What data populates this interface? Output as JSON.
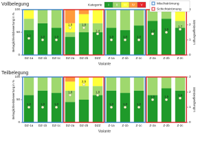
{
  "chart_data": [
    {
      "type": "bar",
      "stacked": true,
      "title": "Vollbelegung",
      "categories": [
        "DZ-1a",
        "DZ-1b",
        "DZ-1c",
        "DZ-2a",
        "DZ-2b",
        "DZZ",
        "Z-1a",
        "Z-1b",
        "Z-1c",
        "Z-2a",
        "Z-2b",
        "Z-2c"
      ],
      "legend_title": "Kategorie",
      "series": [
        {
          "name": "I",
          "color": "#1f9a2a",
          "values": [
            55,
            70,
            60,
            40,
            50,
            50,
            60,
            55,
            65,
            75,
            80,
            60
          ]
        },
        {
          "name": "II",
          "color": "#9fd86e",
          "values": [
            25,
            30,
            40,
            10,
            20,
            20,
            40,
            45,
            35,
            25,
            20,
            15
          ]
        },
        {
          "name": "III",
          "color": "#ffff3c",
          "values": [
            20,
            0,
            0,
            20,
            20,
            30,
            0,
            0,
            0,
            0,
            0,
            25
          ]
        },
        {
          "name": "IV",
          "color": "#ff9a3c",
          "values": [
            0,
            0,
            0,
            30,
            10,
            0,
            0,
            0,
            0,
            0,
            0,
            0
          ]
        },
        {
          "name": "V",
          "color": "#e8242a",
          "values": [
            0,
            0,
            0,
            0,
            0,
            0,
            0,
            0,
            0,
            0,
            0,
            0
          ]
        }
      ],
      "effectiveness": {
        "axis": "y2",
        "color": "#ffffcc",
        "values": [
          1.1,
          1.0,
          1.0,
          1.8,
          1.8,
          1.4,
          1.0,
          1.0,
          1.0,
          1.4,
          1.5,
          1.7
        ],
        "value_labels": [
          "1,1",
          "1,0",
          "1,0",
          "1,8",
          "1,8",
          "1,4",
          "1,0",
          "1,0",
          "1,0",
          "1,4",
          "1,5",
          "1,7"
        ]
      },
      "flow_legend": [
        {
          "name": "Mischströmung",
          "color": "#3b7fc4"
        },
        {
          "name": "Schichtströmung",
          "color": "#d9252a"
        }
      ],
      "group_colors": [
        "#3b7fc4",
        "#d9252a",
        "#3b7fc4",
        "#d9252a"
      ],
      "xlabel": "Variante",
      "ylabel": "Behaglichkeitsbewertung in %",
      "y2label": "Lüftungseffektivität",
      "ylim": [
        0,
        100
      ],
      "yticks": [
        0,
        50,
        100
      ],
      "y2lim": [
        0,
        3
      ],
      "y2ticks": [
        0,
        1,
        2,
        3
      ]
    },
    {
      "type": "bar",
      "stacked": true,
      "title": "Teilbelegung",
      "categories": [
        "DZ-1a",
        "DZ-1b",
        "DZ-1c",
        "DZ-2a",
        "DZ-2b",
        "DZZ",
        "Z-1a",
        "Z-1b",
        "Z-1c",
        "Z-2a",
        "Z-2b",
        "Z-2c"
      ],
      "series": [
        {
          "color": "#1f9a2a",
          "values": [
            60,
            70,
            65,
            45,
            50,
            60,
            70,
            65,
            70,
            60,
            75,
            70
          ]
        },
        {
          "color": "#9fd86e",
          "values": [
            40,
            30,
            35,
            25,
            30,
            20,
            30,
            35,
            30,
            40,
            25,
            30
          ]
        },
        {
          "color": "#ffff3c",
          "values": [
            0,
            0,
            0,
            20,
            20,
            20,
            0,
            0,
            0,
            0,
            0,
            0
          ]
        },
        {
          "color": "#ff9a3c",
          "values": [
            0,
            0,
            0,
            10,
            0,
            0,
            0,
            0,
            0,
            0,
            0,
            0
          ]
        },
        {
          "color": "#e8242a",
          "values": [
            0,
            0,
            0,
            0,
            0,
            0,
            0,
            0,
            0,
            0,
            0,
            0
          ]
        }
      ],
      "effectiveness": {
        "axis": "y2",
        "color": "#ffffcc",
        "values": [
          1.0,
          1.0,
          1.0,
          1.8,
          2.5,
          1.8,
          1.0,
          1.0,
          1.0,
          1.5,
          1.5,
          1.6
        ],
        "value_labels": [
          "1,0",
          "1,0",
          "1,0",
          "1,8",
          "2,5",
          "1,8",
          "1,0",
          "1,0",
          "1,0",
          "1,5",
          "1,5",
          "1,6"
        ]
      },
      "group_colors": [
        "#3b7fc4",
        "#d9252a",
        "#3b7fc4",
        "#d9252a"
      ],
      "xlabel": "Variante",
      "ylabel": "Behaglichkeitsbewertung in %",
      "y2label": "Lüftungseffektivität",
      "ylim": [
        0,
        100
      ],
      "yticks": [
        0,
        50,
        100
      ],
      "y2lim": [
        0,
        3
      ],
      "y2ticks": [
        0,
        1,
        2,
        3
      ]
    }
  ]
}
